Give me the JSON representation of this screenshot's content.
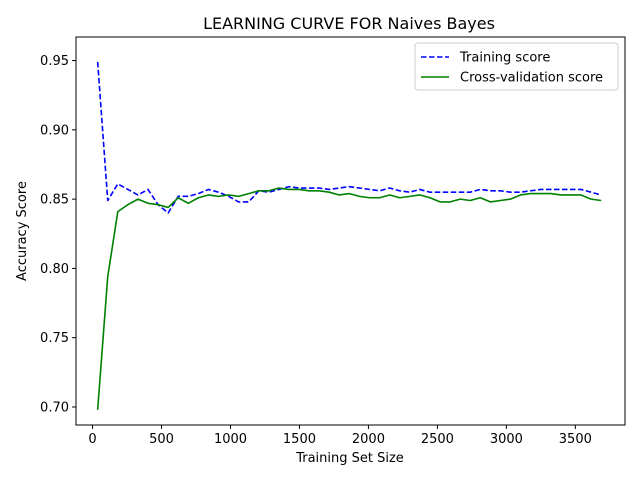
{
  "chart_data": {
    "type": "line",
    "title": "LEARNING CURVE FOR Naives Bayes",
    "xlabel": "Training Set Size",
    "ylabel": "Accuracy Score",
    "xlim": [
      -120,
      3860
    ],
    "ylim": [
      0.687,
      0.967
    ],
    "xticks": [
      0,
      500,
      1000,
      1500,
      2000,
      2500,
      3000,
      3500
    ],
    "xtick_labels": [
      "0",
      "500",
      "1000",
      "1500",
      "2000",
      "2500",
      "3000",
      "3500"
    ],
    "yticks": [
      0.7,
      0.75,
      0.8,
      0.85,
      0.9,
      0.95
    ],
    "ytick_labels": [
      "0.70",
      "0.75",
      "0.80",
      "0.85",
      "0.90",
      "0.95"
    ],
    "grid": false,
    "legend_position": "top-right",
    "x": [
      37,
      110,
      183,
      256,
      329,
      402,
      475,
      548,
      621,
      694,
      767,
      840,
      913,
      986,
      1059,
      1132,
      1205,
      1278,
      1351,
      1424,
      1497,
      1570,
      1643,
      1716,
      1789,
      1862,
      1935,
      2008,
      2081,
      2154,
      2227,
      2300,
      2373,
      2446,
      2519,
      2592,
      2665,
      2738,
      2811,
      2884,
      2957,
      3030,
      3103,
      3176,
      3249,
      3322,
      3395,
      3468,
      3541,
      3614,
      3687
    ],
    "series": [
      {
        "name": "Training score",
        "color": "#0000ff",
        "style": "dashed",
        "values": [
          0.949,
          0.849,
          0.861,
          0.857,
          0.853,
          0.857,
          0.846,
          0.84,
          0.852,
          0.852,
          0.854,
          0.857,
          0.855,
          0.852,
          0.848,
          0.848,
          0.856,
          0.855,
          0.857,
          0.859,
          0.858,
          0.858,
          0.858,
          0.857,
          0.858,
          0.859,
          0.858,
          0.857,
          0.856,
          0.858,
          0.856,
          0.855,
          0.857,
          0.855,
          0.855,
          0.855,
          0.855,
          0.855,
          0.857,
          0.856,
          0.856,
          0.855,
          0.855,
          0.856,
          0.857,
          0.857,
          0.857,
          0.857,
          0.857,
          0.855,
          0.853
        ]
      },
      {
        "name": "Cross-validation score",
        "color": "#008000",
        "style": "solid",
        "values": [
          0.698,
          0.794,
          0.841,
          0.846,
          0.85,
          0.847,
          0.846,
          0.844,
          0.851,
          0.847,
          0.851,
          0.853,
          0.852,
          0.853,
          0.852,
          0.854,
          0.856,
          0.856,
          0.858,
          0.857,
          0.857,
          0.856,
          0.856,
          0.855,
          0.853,
          0.854,
          0.852,
          0.851,
          0.851,
          0.853,
          0.851,
          0.852,
          0.853,
          0.851,
          0.848,
          0.848,
          0.85,
          0.849,
          0.851,
          0.848,
          0.849,
          0.85,
          0.853,
          0.854,
          0.854,
          0.854,
          0.853,
          0.853,
          0.853,
          0.85,
          0.849
        ]
      }
    ]
  }
}
